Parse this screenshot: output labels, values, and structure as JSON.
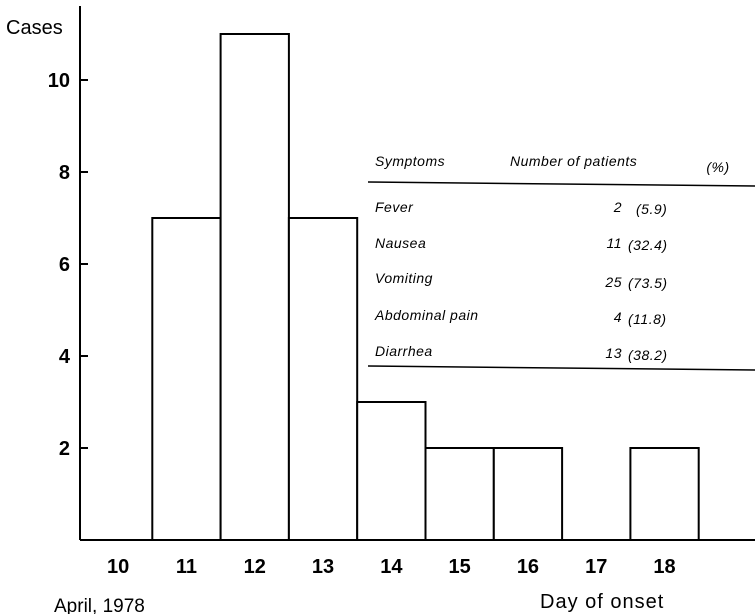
{
  "chart_data": {
    "type": "bar",
    "title": "",
    "ylabel": "Cases",
    "xlabel": "Day of onset",
    "date_caption": "April, 1978",
    "categories": [
      "10",
      "11",
      "12",
      "13",
      "14",
      "15",
      "16",
      "17",
      "18"
    ],
    "values": [
      0,
      7,
      11,
      7,
      3,
      2,
      2,
      0,
      2
    ],
    "ylim": [
      0,
      11.5
    ],
    "yticks": [
      "2",
      "4",
      "6",
      "8",
      "10"
    ],
    "grid": false,
    "legend": "none",
    "bar_fill": "#ffffff",
    "bar_stroke": "#000000"
  },
  "table": {
    "headers": [
      "Symptoms",
      "Number of patients",
      "(%)"
    ],
    "rows": [
      {
        "symptom": "Fever",
        "count": "2",
        "pct": "(5.9)"
      },
      {
        "symptom": "Nausea",
        "count": "11",
        "pct": "(32.4)"
      },
      {
        "symptom": "Vomiting",
        "count": "25",
        "pct": "(73.5)"
      },
      {
        "symptom": "Abdominal pain",
        "count": "4",
        "pct": "(11.8)"
      },
      {
        "symptom": "Diarrhea",
        "count": "13",
        "pct": "(38.2)"
      }
    ]
  }
}
